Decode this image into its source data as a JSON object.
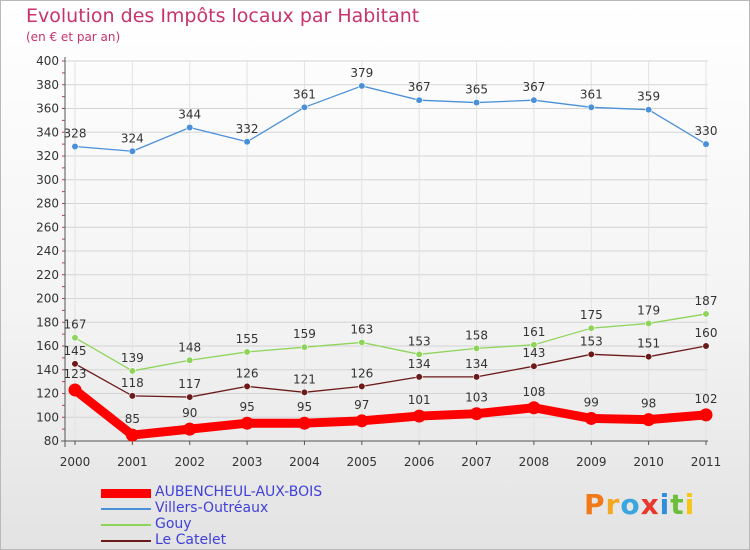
{
  "header": {
    "title": "Evolution des Impôts locaux par Habitant",
    "subtitle": "(en € et par an)"
  },
  "logo": {
    "letters": [
      "P",
      "r",
      "o",
      "x",
      "i",
      "t",
      "i"
    ],
    "colors": [
      "#f07a1a",
      "#f5a623",
      "#3aa6e0",
      "#e8372c",
      "#2f8fd8",
      "#6cbf3b",
      "#f5c518"
    ]
  },
  "chart_data": {
    "type": "line",
    "categories": [
      "2000",
      "2001",
      "2002",
      "2003",
      "2004",
      "2005",
      "2006",
      "2007",
      "2008",
      "2009",
      "2010",
      "2011"
    ],
    "y_ticks": [
      "80",
      "100",
      "120",
      "140",
      "160",
      "180",
      "200",
      "220",
      "240",
      "260",
      "280",
      "300",
      "320",
      "340",
      "360",
      "380",
      "400"
    ],
    "ylim": [
      80,
      400
    ],
    "grid": true,
    "legend_position": "bottom-left",
    "series": [
      {
        "name": "AUBENCHEUL-AUX-BOIS",
        "color": "#ff0000",
        "emphasis": true,
        "values": [
          123,
          85,
          90,
          95,
          95,
          97,
          101,
          103,
          108,
          99,
          98,
          102
        ],
        "labels": [
          "123",
          "85",
          "90",
          "95",
          "95",
          "97",
          "101",
          "103",
          "108",
          "99",
          "98",
          "102"
        ]
      },
      {
        "name": "Villers-Outréaux",
        "color": "#4a90d9",
        "emphasis": false,
        "values": [
          328,
          324,
          344,
          332,
          361,
          379,
          367,
          365,
          367,
          361,
          359,
          330
        ],
        "labels": [
          "328",
          "324",
          "344",
          "332",
          "361",
          "379",
          "367",
          "365",
          "367",
          "361",
          "359",
          "330"
        ]
      },
      {
        "name": "Gouy",
        "color": "#8fd45a",
        "emphasis": false,
        "values": [
          167,
          139,
          148,
          155,
          159,
          163,
          153,
          158,
          161,
          175,
          179,
          187
        ],
        "labels": [
          "167",
          "139",
          "148",
          "155",
          "159",
          "163",
          "153",
          "158",
          "161",
          "175",
          "179",
          "187"
        ]
      },
      {
        "name": "Le Catelet",
        "color": "#6b1a1a",
        "emphasis": false,
        "values": [
          145,
          118,
          117,
          126,
          121,
          126,
          134,
          134,
          143,
          153,
          151,
          160
        ],
        "labels": [
          "145",
          "118",
          "117",
          "126",
          "121",
          "126",
          "134",
          "134",
          "143",
          "153",
          "151",
          "160"
        ]
      }
    ]
  }
}
